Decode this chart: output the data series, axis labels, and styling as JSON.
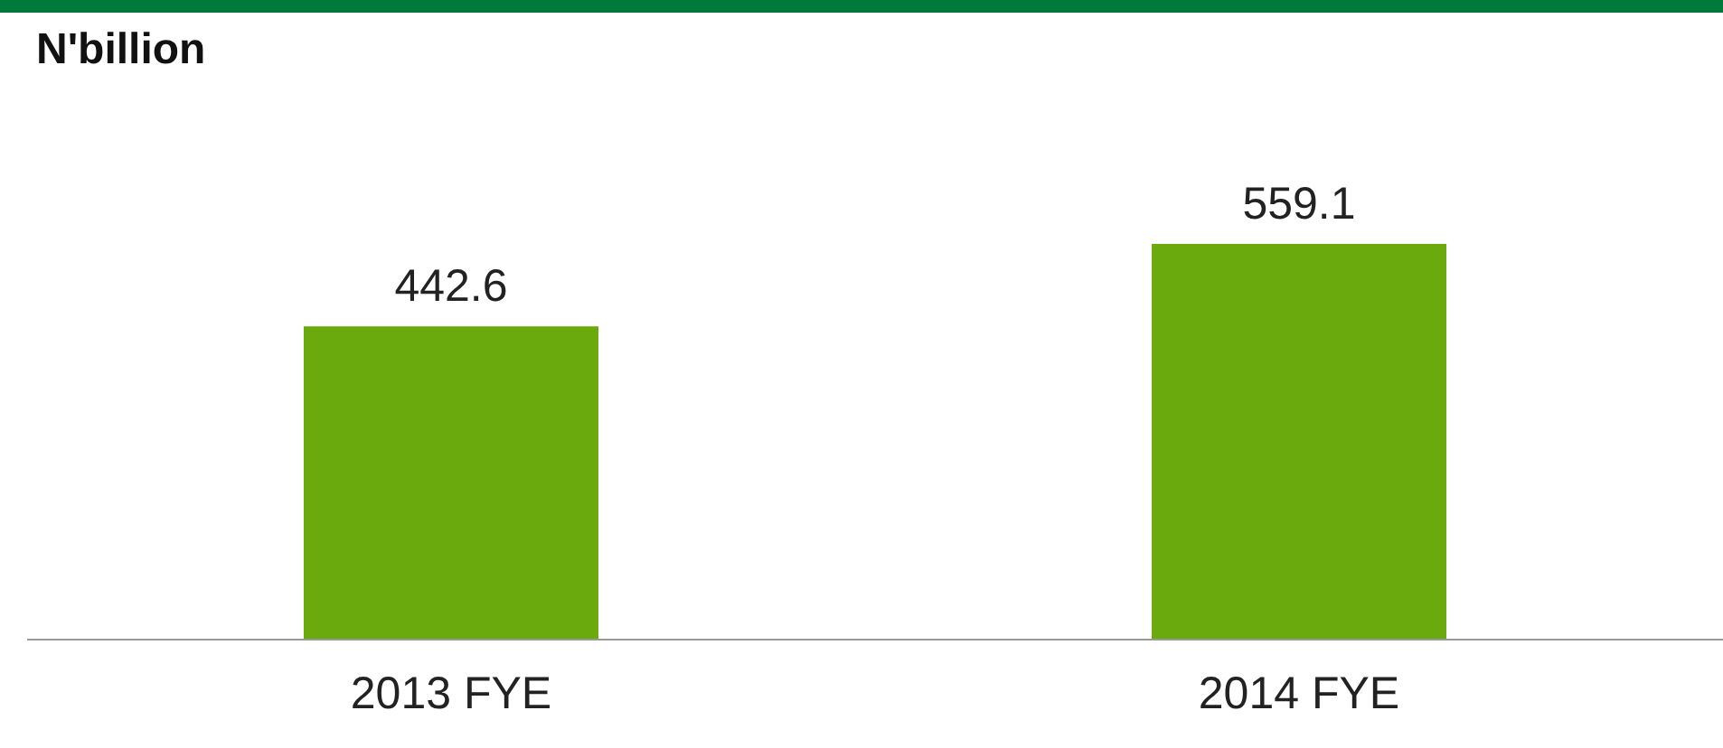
{
  "chart_data": {
    "type": "bar",
    "ylabel": "N'billion",
    "categories": [
      "2013 FYE",
      "2014 FYE"
    ],
    "values": [
      442.6,
      559.1
    ],
    "color": "#6aaa0c",
    "data_labels": true
  }
}
